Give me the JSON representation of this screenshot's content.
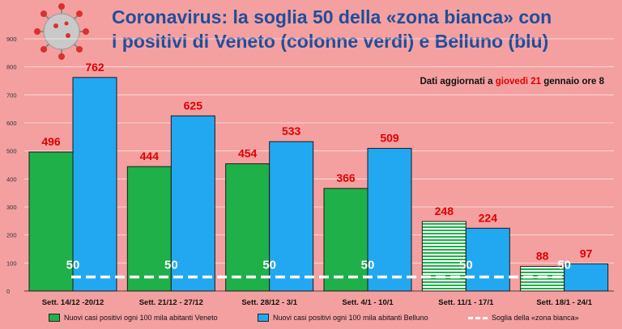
{
  "title_line1": "Coronavirus: la soglia 50 della «zona bianca» con",
  "title_line2": "i positivi di Veneto (colonne verdi) e Belluno (blu)",
  "subtitle": {
    "prefix": "Dati aggiornati a ",
    "highlight": "giovedì 21",
    "suffix": " gennaio ore 8"
  },
  "colors": {
    "background": "#f4a0a0",
    "veneto": "#1fb04a",
    "belluno": "#22a8f0",
    "title": "#1f4e9c",
    "value_label": "#e00000",
    "threshold": "#ffffff"
  },
  "chart_data": {
    "type": "bar",
    "categories": [
      "Sett. 14/12 -20/12",
      "Sett. 21/12 - 27/12",
      "Sett. 28/12 - 3/1",
      "Sett. 4/1 - 10/1",
      "Sett. 11/1 - 17/1",
      "Sett. 18/1 - 24/1"
    ],
    "series": [
      {
        "name": "Nuovi casi positivi ogni 100 mila abitanti Veneto",
        "values": [
          496,
          444,
          454,
          366,
          248,
          88
        ],
        "color": "#1fb04a",
        "partial_from_index": 4
      },
      {
        "name": "Nuovi casi positivi ogni 100 mila abitanti Belluno",
        "values": [
          762,
          625,
          533,
          509,
          224,
          97
        ],
        "color": "#22a8f0"
      }
    ],
    "threshold": {
      "name": "Soglia della «zona bianca»",
      "value": 50,
      "label": "50"
    },
    "ylim": [
      0,
      900
    ],
    "yticks": [
      0,
      100,
      200,
      300,
      400,
      500,
      600,
      700,
      800,
      900
    ],
    "grid": true,
    "legend_position": "bottom"
  }
}
